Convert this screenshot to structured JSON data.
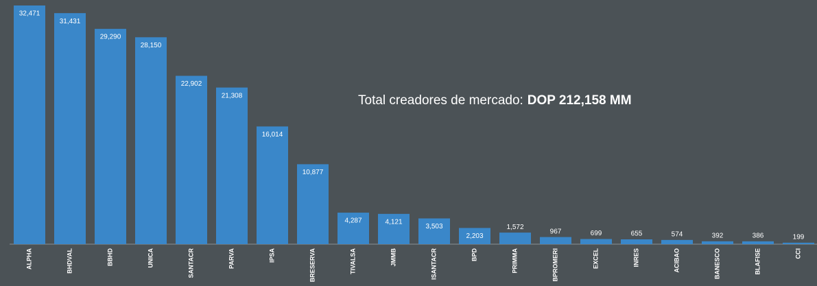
{
  "chart_data": {
    "type": "bar",
    "annotation": {
      "text": "Total creadores de mercado:",
      "highlight": "DOP 212,158 MM"
    },
    "categories": [
      "ALPHA",
      "BHDVAL",
      "BBHD",
      "UNICA",
      "SANTACR",
      "PARVA",
      "IPSA",
      "BRESERVA",
      "TIVALSA",
      "JMMB",
      "ISANTACR",
      "BPD",
      "PRIMMA",
      "BPROMERI",
      "EXCEL",
      "INRES",
      "ACIBAO",
      "BANESCO",
      "BLAFISE",
      "CCI"
    ],
    "values": [
      32471,
      31431,
      29290,
      28150,
      22902,
      21308,
      16014,
      10877,
      4287,
      4121,
      3503,
      2203,
      1572,
      967,
      699,
      655,
      574,
      392,
      386,
      199
    ],
    "value_labels": [
      "32,471",
      "31,431",
      "29,290",
      "28,150",
      "22,902",
      "21,308",
      "16,014",
      "10,877",
      "4,287",
      "4,121",
      "3,503",
      "2,203",
      "1,572",
      "967",
      "699",
      "655",
      "574",
      "392",
      "386",
      "199"
    ],
    "color": "#3a87c9"
  }
}
